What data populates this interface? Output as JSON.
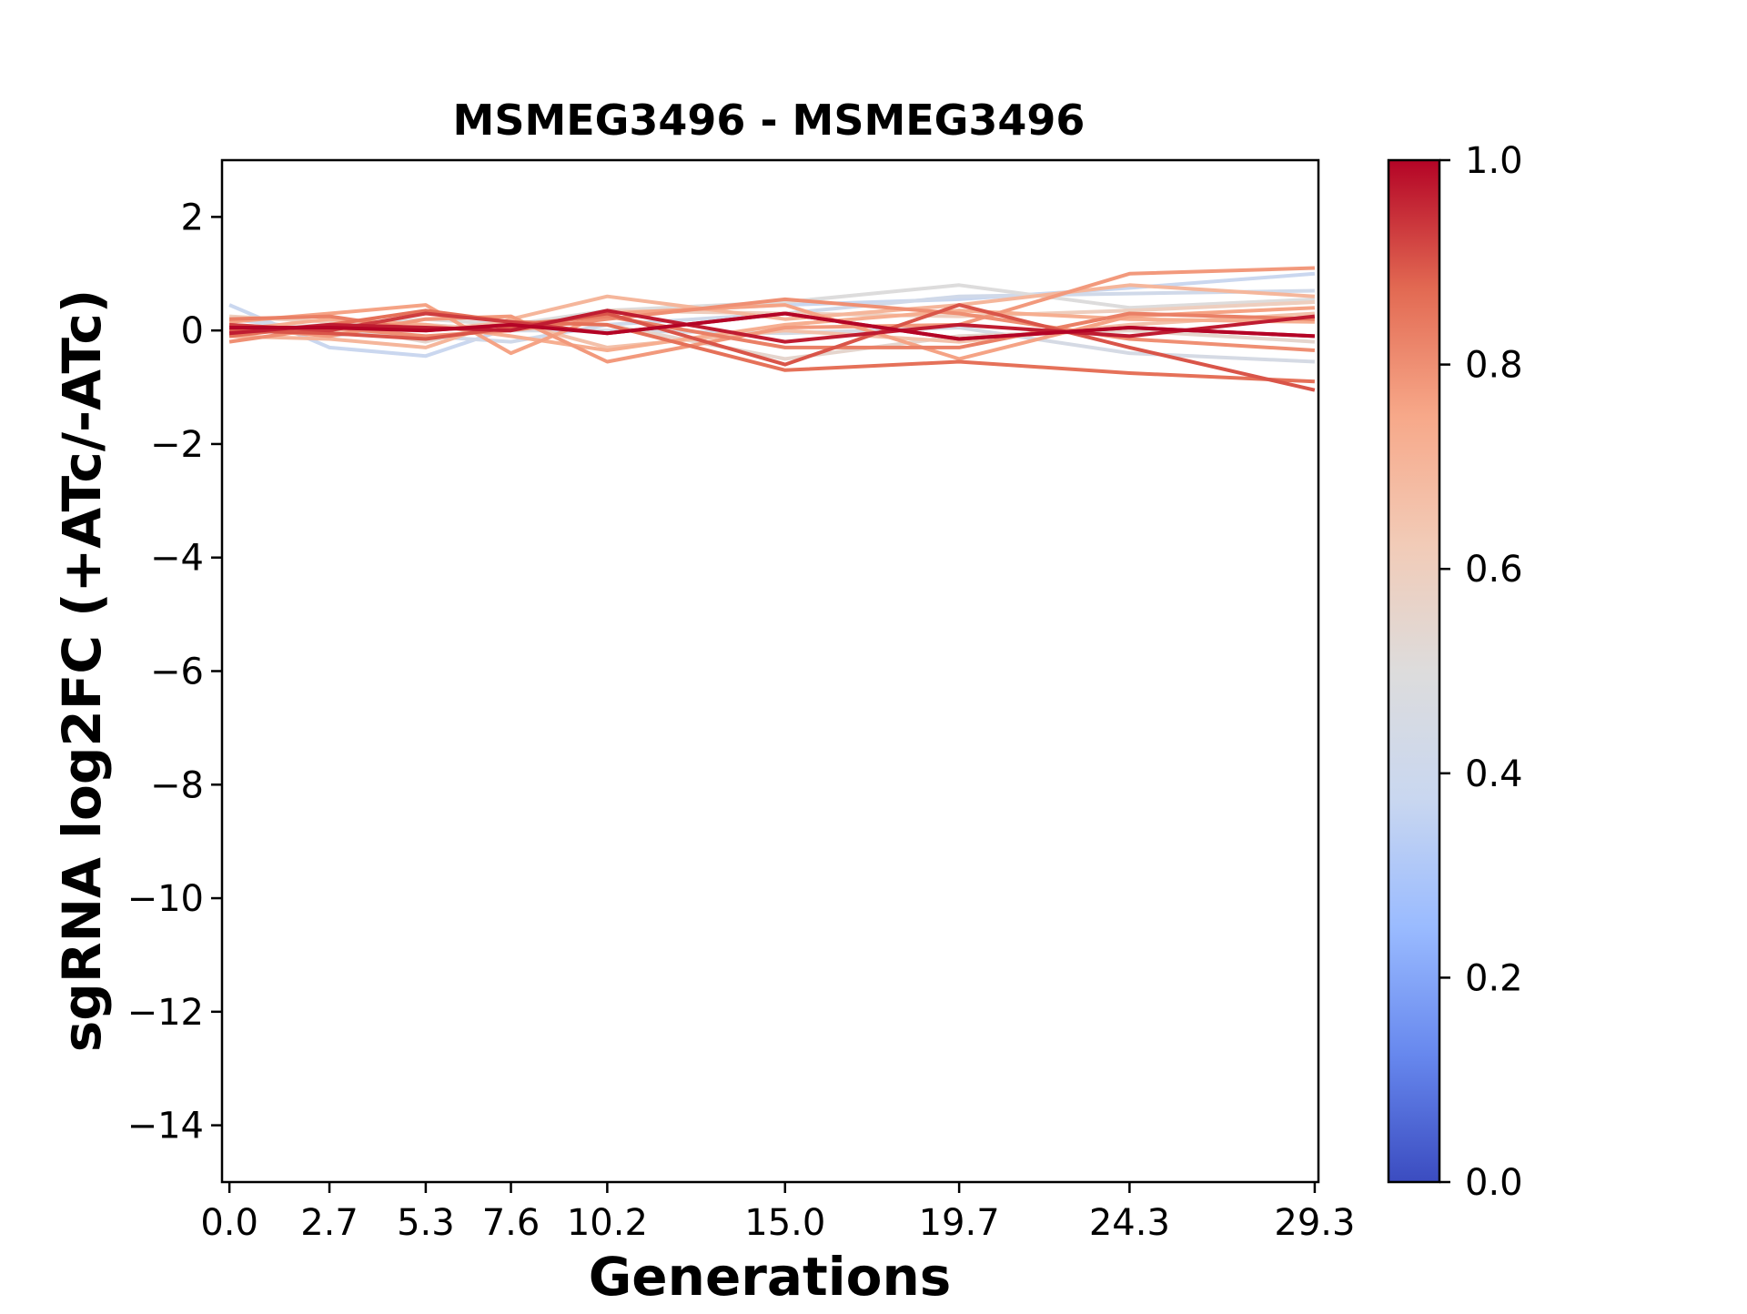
{
  "chart_data": {
    "type": "line",
    "title": "MSMEG3496 - MSMEG3496",
    "xlabel": "Generations",
    "ylabel": "sgRNA log2FC (+ATc/-ATc)",
    "x": [
      0.0,
      2.7,
      5.3,
      7.6,
      10.2,
      15.0,
      19.7,
      24.3,
      29.3
    ],
    "x_tick_labels": [
      "0.0",
      "2.7",
      "5.3",
      "7.6",
      "10.2",
      "15.0",
      "19.7",
      "24.3",
      "29.3"
    ],
    "xlim": [
      -0.2,
      29.4
    ],
    "ylim": [
      -15,
      3
    ],
    "y_ticks": [
      2,
      0,
      -2,
      -4,
      -6,
      -8,
      -10,
      -12,
      -14
    ],
    "y_tick_labels": [
      "2",
      "0",
      "−2",
      "−4",
      "−6",
      "−8",
      "−10",
      "−12",
      "−14"
    ],
    "grid": false,
    "colorbar": {
      "colormap": "coolwarm",
      "range": [
        0.0,
        1.0
      ],
      "ticks": [
        "0.0",
        "0.2",
        "0.4",
        "0.6",
        "0.8",
        "1.0"
      ],
      "stops": [
        "#3b4cc0",
        "#6788ee",
        "#9abbff",
        "#c9d7f0",
        "#dddcdc",
        "#f2cbb7",
        "#f7a889",
        "#e26952",
        "#b40426"
      ]
    },
    "series": [
      {
        "color_value": 0.38,
        "values": [
          0.45,
          -0.3,
          -0.45,
          0.05,
          0.3,
          0.45,
          0.55,
          0.75,
          1.0
        ]
      },
      {
        "color_value": 0.42,
        "values": [
          0.2,
          0.0,
          -0.1,
          -0.2,
          0.1,
          0.3,
          0.6,
          0.65,
          0.7
        ]
      },
      {
        "color_value": 0.45,
        "values": [
          0.1,
          -0.1,
          0.1,
          0.0,
          0.0,
          -0.05,
          0.05,
          -0.4,
          -0.55
        ]
      },
      {
        "color_value": 0.5,
        "values": [
          -0.05,
          0.05,
          0.2,
          0.1,
          0.35,
          0.5,
          0.8,
          0.4,
          0.55
        ]
      },
      {
        "color_value": 0.55,
        "values": [
          0.0,
          0.1,
          -0.2,
          0.15,
          0.1,
          -0.5,
          -0.1,
          0.0,
          -0.2
        ]
      },
      {
        "color_value": 0.6,
        "values": [
          0.25,
          0.15,
          0.1,
          0.0,
          0.35,
          0.3,
          0.25,
          0.35,
          0.5
        ]
      },
      {
        "color_value": 0.66,
        "values": [
          0.1,
          0.0,
          0.0,
          0.15,
          -0.3,
          0.0,
          -0.2,
          0.1,
          0.3
        ]
      },
      {
        "color_value": 0.7,
        "values": [
          -0.1,
          -0.15,
          -0.3,
          0.2,
          0.6,
          0.2,
          0.45,
          0.8,
          0.6
        ]
      },
      {
        "color_value": 0.73,
        "values": [
          0.0,
          0.2,
          0.1,
          -0.1,
          -0.35,
          0.1,
          0.35,
          0.2,
          0.15
        ]
      },
      {
        "color_value": 0.76,
        "values": [
          0.15,
          0.3,
          0.45,
          -0.4,
          0.3,
          0.45,
          -0.5,
          0.25,
          0.4
        ]
      },
      {
        "color_value": 0.78,
        "values": [
          0.05,
          -0.1,
          0.2,
          0.25,
          -0.55,
          0.05,
          0.1,
          1.0,
          1.1
        ]
      },
      {
        "color_value": 0.8,
        "values": [
          -0.2,
          0.05,
          -0.1,
          0.0,
          0.2,
          0.55,
          0.3,
          -0.15,
          -0.35
        ]
      },
      {
        "color_value": 0.83,
        "values": [
          0.2,
          0.25,
          0.0,
          0.1,
          0.25,
          -0.3,
          -0.3,
          0.3,
          0.2
        ]
      },
      {
        "color_value": 0.86,
        "values": [
          -0.1,
          0.1,
          0.35,
          0.15,
          0.1,
          -0.7,
          -0.55,
          -0.75,
          -0.9
        ]
      },
      {
        "color_value": 0.9,
        "values": [
          0.0,
          -0.05,
          -0.15,
          0.05,
          0.3,
          -0.6,
          0.45,
          -0.3,
          -1.05
        ]
      },
      {
        "color_value": 0.93,
        "values": [
          0.1,
          0.0,
          0.3,
          0.15,
          -0.05,
          0.3,
          -0.15,
          0.05,
          -0.1
        ]
      },
      {
        "color_value": 0.97,
        "values": [
          -0.05,
          0.1,
          0.05,
          0.0,
          0.35,
          -0.2,
          0.1,
          -0.1,
          0.25
        ]
      },
      {
        "color_value": 1.0,
        "values": [
          0.05,
          0.05,
          0.0,
          0.1,
          -0.05,
          0.3,
          -0.15,
          0.05,
          -0.1
        ]
      }
    ]
  }
}
